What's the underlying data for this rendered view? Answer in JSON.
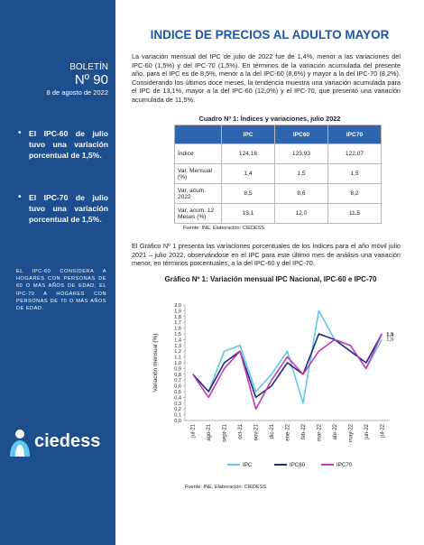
{
  "sidebar": {
    "label": "BOLETÍN",
    "number": "Nº 90",
    "date": "8 de agosto de 2022",
    "bullets": [
      "El IPC-60 de julio tuvo una variación porcentual de 1,5%.",
      "El IPC-70 de julio tuvo una variación porcentual de 1,5%."
    ],
    "note": "EL IPC-60 CONSIDERA A HOGARES CON PERSONAS DE 60 O MÁS AÑOS DE EDAD, EL IPC-70 A HOGARES CON PERSONAS DE 70 O MÁS AÑOS DE EDAD.",
    "logo": "ciedess"
  },
  "header": {
    "title": "INDICE DE PRECIOS AL ADULTO MAYOR"
  },
  "intro": "La variación mensual del IPC de julio de 2022 fue de 1,4%, menor a las variaciones del IPC-60 (1,5%) y del IPC-70 (1,5%). En términos de la variación acumulada del presente año, para el IPC es de 8,5%, menor a la del IPC-60 (8,6%) y mayor a la del IPC-70 (8,2%). Considerando los últimos doce meses, la tendencia muestra una variación acumulada para el IPC de 13,1%, mayor a la del IPC-60 (12,0%) y el IPC-70, que presentó una variación acumulada de 11,5%.",
  "table": {
    "caption": "Cuadro Nº 1: Índices y variaciones, julio 2022",
    "headers": [
      "IPC",
      "IPC60",
      "IPC70"
    ],
    "rows": [
      [
        "Índice",
        "124,16",
        "123,93",
        "122,07"
      ],
      [
        "Var. Mensual (%)",
        "1,4",
        "1,5",
        "1,5"
      ],
      [
        "Var. acum. 2022",
        "8,5",
        "8,6",
        "8,2"
      ],
      [
        "Var. acum. 12 Meses (%)",
        "13,1",
        "12,0",
        "11,5"
      ]
    ],
    "source": "Fuente: INE. Elaboración: CIEDESS."
  },
  "analysis": "El Gráfico Nº 1 presenta las variaciones porcentuales de los índices para el año móvil julio 2021 – julio 2022, observándose en el IPC para este último mes de análisis una variación menor, en términos porcentuales, a la del IPC-60 y del IPC-70.",
  "chart_data": {
    "type": "line",
    "title": "Gráfico Nº 1: Variación mensual IPC Nacional, IPC-60 e IPC-70",
    "y_label": "Variación mensual (%)",
    "categories": [
      "jul-21",
      "ago-21",
      "sept-21",
      "oct-21",
      "nov-21",
      "dic-21",
      "ene-22",
      "feb-22",
      "mar-22",
      "abr-22",
      "may-22",
      "jun-22",
      "jul-22"
    ],
    "series": [
      {
        "name": "IPC",
        "color": "#5ec8ee",
        "values": [
          0.8,
          0.5,
          1.2,
          1.3,
          0.5,
          0.8,
          1.2,
          0.3,
          1.9,
          1.4,
          1.3,
          0.9,
          1.4
        ],
        "value_labels": [
          null,
          null,
          null,
          null,
          null,
          null,
          null,
          null,
          null,
          null,
          null,
          null,
          "1,4"
        ]
      },
      {
        "name": "IPC60",
        "color": "#1f2a7c",
        "values": [
          0.8,
          0.5,
          1.0,
          1.2,
          0.4,
          0.6,
          1.0,
          0.8,
          1.5,
          1.4,
          1.2,
          1.0,
          1.5
        ],
        "value_labels": [
          null,
          null,
          null,
          null,
          null,
          null,
          null,
          null,
          null,
          null,
          null,
          null,
          "1,5"
        ]
      },
      {
        "name": "IPC70",
        "color": "#c23ab4",
        "values": [
          0.8,
          0.4,
          0.9,
          1.2,
          0.2,
          0.7,
          1.1,
          0.8,
          1.2,
          1.4,
          1.3,
          0.9,
          1.5
        ],
        "value_labels": [
          null,
          null,
          null,
          null,
          null,
          null,
          null,
          null,
          null,
          null,
          null,
          null,
          "1,5"
        ]
      }
    ],
    "ylim": [
      0,
      2
    ],
    "yticks": [
      {
        "value": 0,
        "label": "0,0"
      },
      {
        "value": 0.1,
        "label": "0,1"
      },
      {
        "value": 0.2,
        "label": "0,2"
      },
      {
        "value": 0.3,
        "label": "0,3"
      },
      {
        "value": 0.4,
        "label": "0,4"
      },
      {
        "value": 0.5,
        "label": "0,5"
      },
      {
        "value": 0.6,
        "label": "0,6"
      },
      {
        "value": 0.7,
        "label": "0,7"
      },
      {
        "value": 0.8,
        "label": "0,8"
      },
      {
        "value": 0.9,
        "label": "0,9"
      },
      {
        "value": 1,
        "label": "1,0"
      },
      {
        "value": 1.1,
        "label": "1,1"
      },
      {
        "value": 1.2,
        "label": "1,2"
      },
      {
        "value": 1.3,
        "label": "1,3"
      },
      {
        "value": 1.4,
        "label": "1,4"
      },
      {
        "value": 1.5,
        "label": "1,5"
      },
      {
        "value": 1.6,
        "label": "1,6"
      },
      {
        "value": 1.7,
        "label": "1,7"
      },
      {
        "value": 1.8,
        "label": "1,8"
      },
      {
        "value": 1.9,
        "label": "1,9"
      },
      {
        "value": 2,
        "label": "2,0"
      }
    ],
    "grid": false,
    "legend": "bottom"
  },
  "chart_source": "Fuente: INE. Elaboración: CIEDESS."
}
